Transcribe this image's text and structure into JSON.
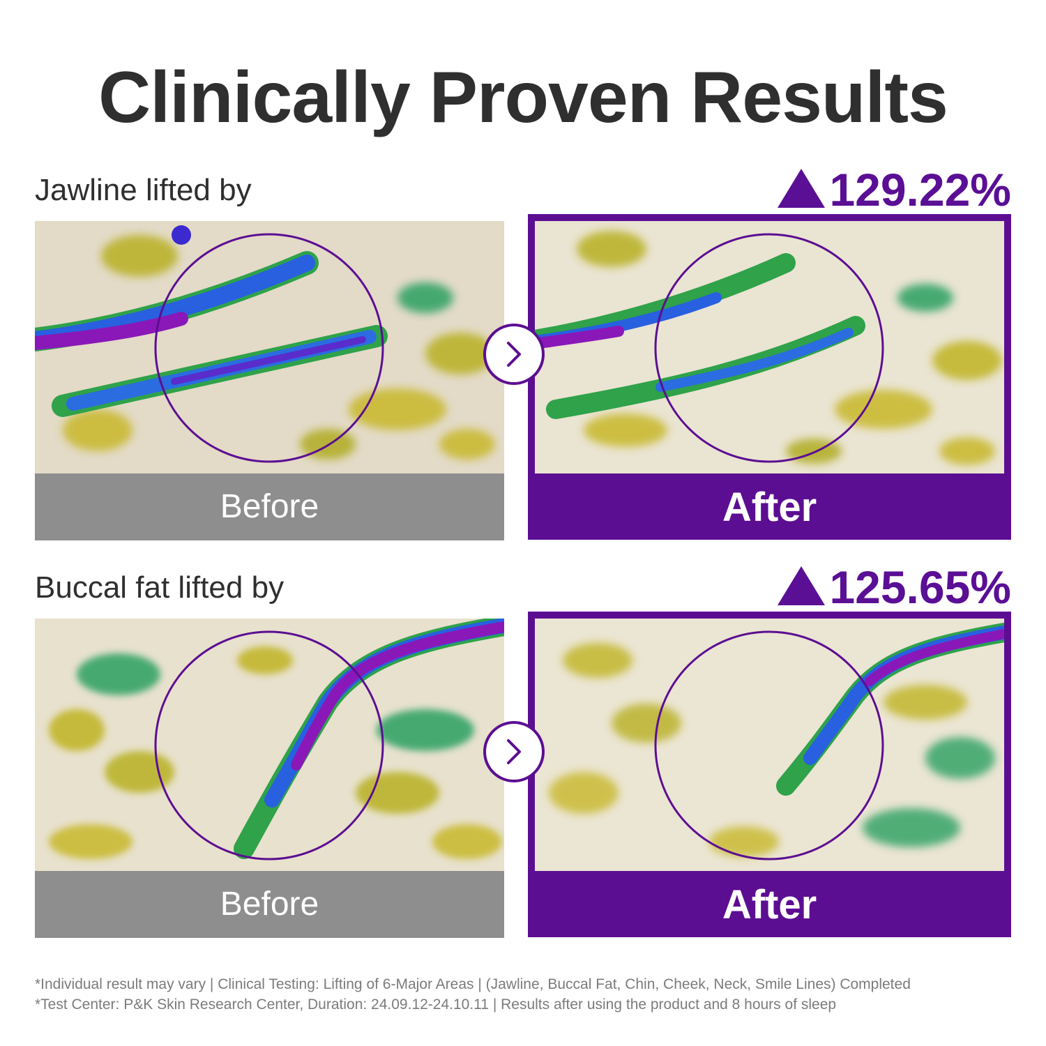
{
  "title": "Clinically Proven Results",
  "sections": [
    {
      "label": "Jawline lifted by",
      "stat": "129.22%",
      "before_label": "Before",
      "after_label": "After"
    },
    {
      "label": "Buccal fat lifted by",
      "stat": "125.65%",
      "before_label": "Before",
      "after_label": "After"
    }
  ],
  "icons": {
    "arrow": "chevron-right-icon",
    "stat_marker": "triangle-up-icon"
  },
  "colors": {
    "accent": "#5c0e92",
    "before_bar": "#8e8e8e",
    "title": "#2f2f2f"
  },
  "footnotes": [
    "*Individual result may vary | Clinical Testing: Lifting of 6-Major Areas | (Jawline, Buccal Fat, Chin, Cheek, Neck, Smile Lines) Completed",
    "*Test Center: P&K Skin Research Center, Duration: 24.09.12-24.10.11 | Results after using the product and 8 hours of sleep"
  ]
}
